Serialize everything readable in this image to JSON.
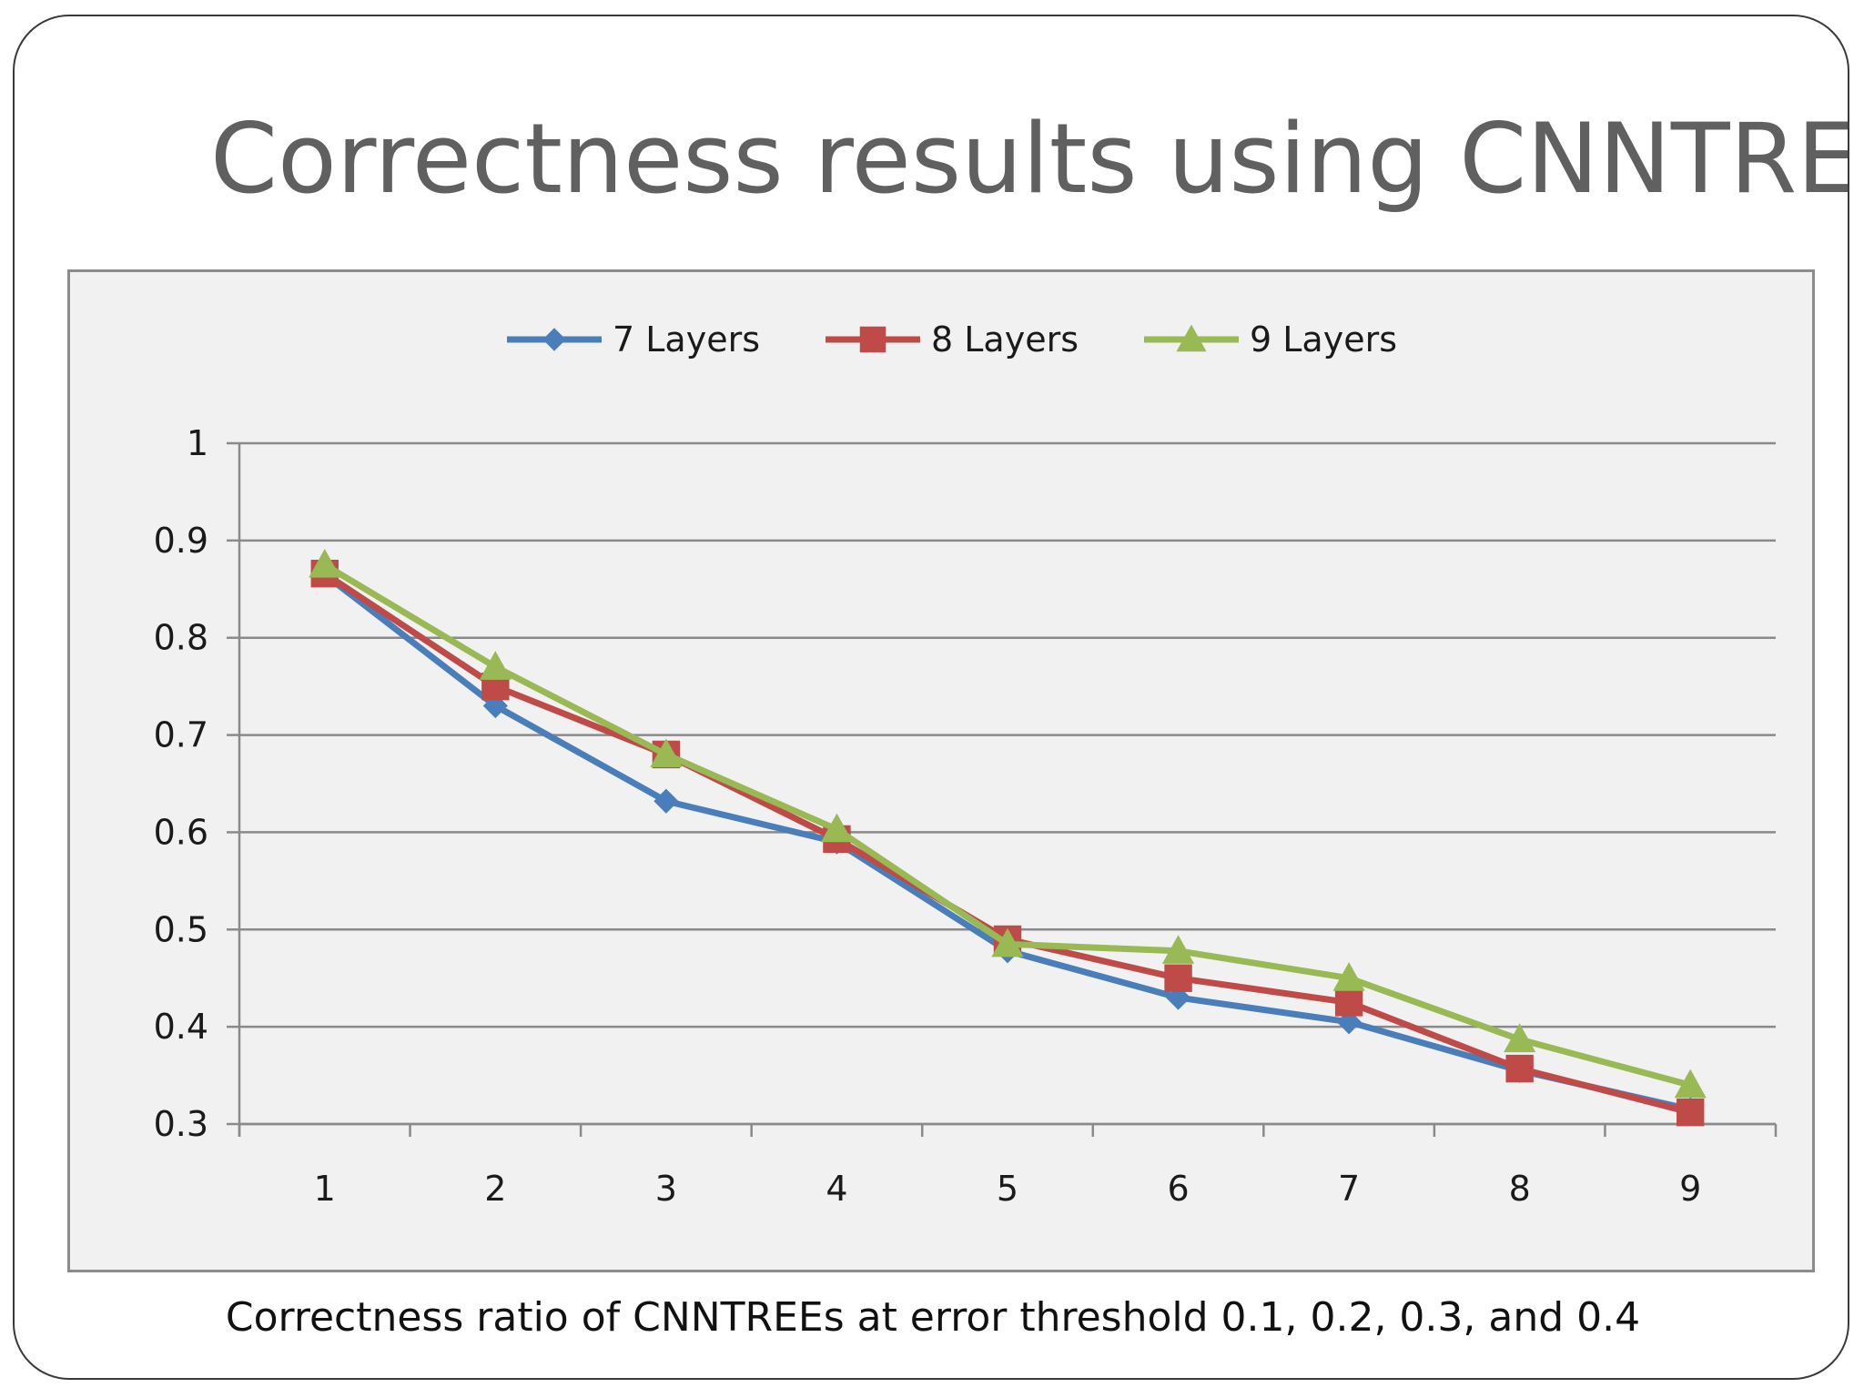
{
  "slide": {
    "title": "Correctness results using CNNTREE",
    "caption": "Correctness ratio of CNNTREEs at error threshold 0.1, 0.2, 0.3, and 0.4"
  },
  "chart_data": {
    "type": "line",
    "title": "",
    "xlabel": "",
    "ylabel": "",
    "x": [
      1,
      2,
      3,
      4,
      5,
      6,
      7,
      8,
      9
    ],
    "x_tick_labels": [
      "1",
      "2",
      "3",
      "4",
      "5",
      "6",
      "7",
      "8",
      "9"
    ],
    "ylim": [
      0.3,
      1
    ],
    "y_tick_labels": [
      "0.3",
      "0.4",
      "0.5",
      "0.6",
      "0.7",
      "0.8",
      "0.9",
      "1"
    ],
    "grid": "horizontal",
    "legend_position": "top-center",
    "series": [
      {
        "name": "7 Layers",
        "color": "#4a7ebb",
        "marker": "diamond",
        "values": [
          0.865,
          0.73,
          0.632,
          0.59,
          0.478,
          0.43,
          0.405,
          0.355,
          0.315
        ]
      },
      {
        "name": "8 Layers",
        "color": "#be4b48",
        "marker": "square",
        "values": [
          0.866,
          0.75,
          0.68,
          0.593,
          0.49,
          0.45,
          0.425,
          0.357,
          0.312
        ]
      },
      {
        "name": "9 Layers",
        "color": "#98b954",
        "marker": "triangle",
        "values": [
          0.875,
          0.77,
          0.68,
          0.603,
          0.485,
          0.478,
          0.45,
          0.387,
          0.34
        ]
      }
    ]
  }
}
